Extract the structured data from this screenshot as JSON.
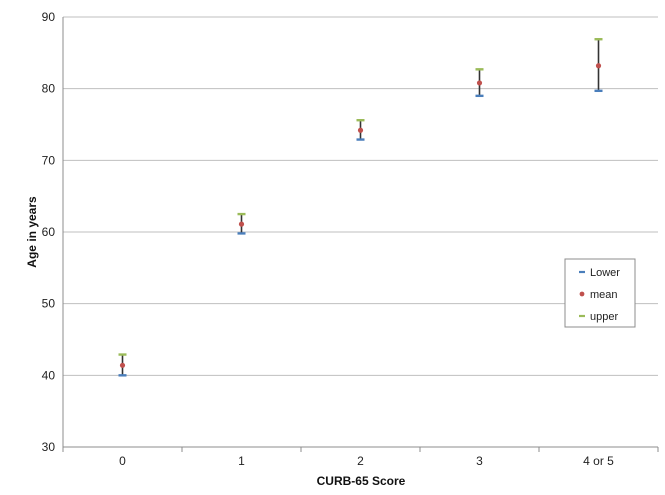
{
  "chart_data": {
    "type": "scatter",
    "title": "",
    "xlabel": "CURB-65 Score",
    "ylabel": "Age in years",
    "categories": [
      "0",
      "1",
      "2",
      "3",
      "4 or 5"
    ],
    "ylim": [
      30,
      90
    ],
    "yticks": [
      "30",
      "40",
      "50",
      "60",
      "70",
      "80",
      "90"
    ],
    "grid": "horizontal",
    "legend_position": "right",
    "series": [
      {
        "name": "Lower",
        "values": [
          40.0,
          59.8,
          72.9,
          79.0,
          79.7
        ],
        "color": "#4a7ebb",
        "marker": "dash"
      },
      {
        "name": "mean",
        "values": [
          41.4,
          61.1,
          74.2,
          80.8,
          83.2
        ],
        "color": "#c0504d",
        "marker": "dot"
      },
      {
        "name": "upper",
        "values": [
          42.9,
          62.5,
          75.6,
          82.7,
          86.9
        ],
        "color": "#9bbb59",
        "marker": "dash"
      }
    ],
    "error_bar_color": "#333333"
  }
}
